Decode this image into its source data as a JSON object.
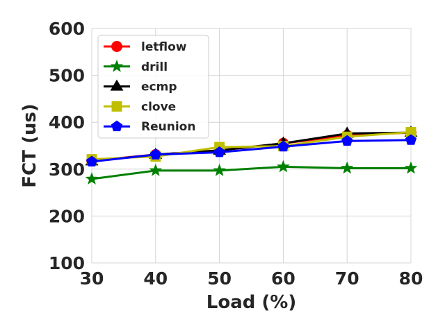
{
  "chart_data": {
    "type": "line",
    "title": "",
    "xlabel": "Load (%)",
    "ylabel": "FCT (us)",
    "x": [
      30,
      40,
      50,
      60,
      70,
      80
    ],
    "xticks": [
      "30",
      "40",
      "50",
      "60",
      "70",
      "80"
    ],
    "yticks": [
      "100",
      "200",
      "300",
      "400",
      "500",
      "600"
    ],
    "xlim": [
      30,
      80
    ],
    "ylim": [
      100,
      600
    ],
    "grid": true,
    "legend_position": "top-left",
    "series": [
      {
        "name": "letflow",
        "color": "#ff0000",
        "marker": "circle",
        "values": [
          318,
          331,
          340,
          355,
          372,
          378
        ]
      },
      {
        "name": "drill",
        "color": "#008000",
        "marker": "star",
        "values": [
          279,
          297,
          297,
          305,
          302,
          302
        ]
      },
      {
        "name": "ecmp",
        "color": "#000000",
        "marker": "triangle",
        "values": [
          317,
          331,
          340,
          355,
          376,
          378
        ]
      },
      {
        "name": "clove",
        "color": "#bfbf00",
        "marker": "square",
        "values": [
          321,
          327,
          347,
          349,
          369,
          379
        ]
      },
      {
        "name": "Reunion",
        "color": "#0000ff",
        "marker": "pentagon",
        "values": [
          316,
          331,
          336,
          348,
          360,
          362
        ]
      }
    ]
  }
}
